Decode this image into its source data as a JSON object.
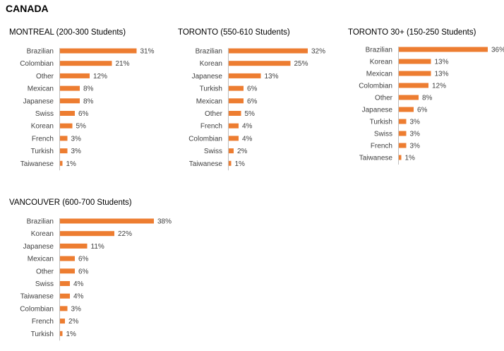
{
  "page": {
    "title": "CANADA"
  },
  "style": {
    "bar_color": "#ED7D31",
    "axis_color": "#BFBFBF"
  },
  "chart_data": [
    {
      "type": "bar",
      "orientation": "horizontal",
      "title": "MONTREAL (200-300 Students)",
      "categories": [
        "Brazilian",
        "Colombian",
        "Other",
        "Mexican",
        "Japanese",
        "Swiss",
        "Korean",
        "French",
        "Turkish",
        "Taiwanese"
      ],
      "values": [
        31,
        21,
        12,
        8,
        8,
        6,
        5,
        3,
        3,
        1
      ],
      "value_labels": [
        "31%",
        "21%",
        "12%",
        "8%",
        "8%",
        "6%",
        "5%",
        "3%",
        "3%",
        "1%"
      ],
      "unit": "%",
      "xlim": [
        0,
        36
      ],
      "grid": false,
      "legend": "none"
    },
    {
      "type": "bar",
      "orientation": "horizontal",
      "title": "TORONTO (550-610 Students)",
      "categories": [
        "Brazilian",
        "Korean",
        "Japanese",
        "Turkish",
        "Mexican",
        "Other",
        "French",
        "Colombian",
        "Swiss",
        "Taiwanese"
      ],
      "values": [
        32,
        25,
        13,
        6,
        6,
        5,
        4,
        4,
        2,
        1
      ],
      "value_labels": [
        "32%",
        "25%",
        "13%",
        "6%",
        "6%",
        "5%",
        "4%",
        "4%",
        "2%",
        "1%"
      ],
      "unit": "%",
      "xlim": [
        0,
        36
      ],
      "grid": false,
      "legend": "none"
    },
    {
      "type": "bar",
      "orientation": "horizontal",
      "title": "TORONTO 30+ (150-250 Students)",
      "categories": [
        "Brazilian",
        "Korean",
        "Mexican",
        "Colombian",
        "Other",
        "Japanese",
        "Turkish",
        "Swiss",
        "French",
        "Taiwanese"
      ],
      "values": [
        36,
        13,
        13,
        12,
        8,
        6,
        3,
        3,
        3,
        1
      ],
      "value_labels": [
        "36%",
        "13%",
        "13%",
        "12%",
        "8%",
        "6%",
        "3%",
        "3%",
        "3%",
        "1%"
      ],
      "unit": "%",
      "xlim": [
        0,
        36
      ],
      "grid": false,
      "legend": "none"
    },
    {
      "type": "bar",
      "orientation": "horizontal",
      "title": "VANCOUVER (600-700 Students)",
      "categories": [
        "Brazilian",
        "Korean",
        "Japanese",
        "Mexican",
        "Other",
        "Swiss",
        "Taiwanese",
        "Colombian",
        "French",
        "Turkish"
      ],
      "values": [
        38,
        22,
        11,
        6,
        6,
        4,
        4,
        3,
        2,
        1
      ],
      "value_labels": [
        "38%",
        "22%",
        "11%",
        "6%",
        "6%",
        "4%",
        "4%",
        "3%",
        "2%",
        "1%"
      ],
      "unit": "%",
      "xlim": [
        0,
        38
      ],
      "grid": false,
      "legend": "none"
    }
  ]
}
